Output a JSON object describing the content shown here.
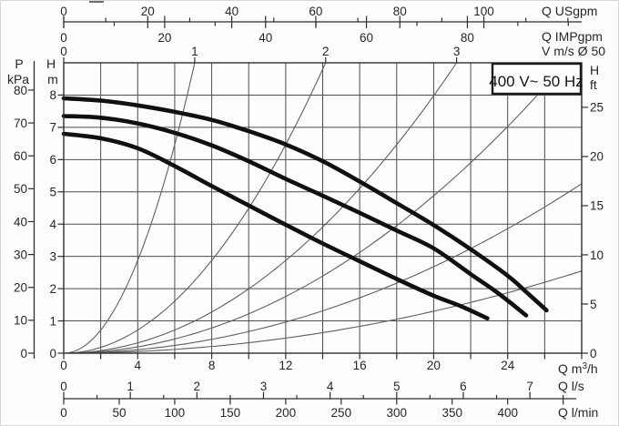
{
  "voltage_badge": "400 V~ 50 Hz",
  "chart_data": {
    "type": "line",
    "title": "",
    "description": "Pump performance curves: head H versus flow Q, three pump curves with pipe-velocity guide parabolas",
    "q_range_m3h": [
      0,
      28
    ],
    "h_range_m": [
      0,
      9
    ],
    "grid": {
      "x_step_m3h": 2,
      "y_step_m": 1,
      "shown": true
    },
    "pump_curves": [
      {
        "name": "top",
        "points_q_h": [
          [
            0,
            7.9
          ],
          [
            2,
            7.83
          ],
          [
            4,
            7.68
          ],
          [
            6,
            7.48
          ],
          [
            8,
            7.23
          ],
          [
            10,
            6.88
          ],
          [
            12,
            6.47
          ],
          [
            14,
            5.95
          ],
          [
            16,
            5.32
          ],
          [
            18,
            4.65
          ],
          [
            20,
            3.97
          ],
          [
            22,
            3.22
          ],
          [
            24,
            2.4
          ],
          [
            25,
            1.9
          ],
          [
            26.1,
            1.33
          ]
        ]
      },
      {
        "name": "middle",
        "points_q_h": [
          [
            0,
            7.35
          ],
          [
            2,
            7.3
          ],
          [
            4,
            7.12
          ],
          [
            6,
            6.83
          ],
          [
            8,
            6.44
          ],
          [
            10,
            5.95
          ],
          [
            12,
            5.4
          ],
          [
            14,
            4.88
          ],
          [
            16,
            4.35
          ],
          [
            18,
            3.8
          ],
          [
            20,
            3.25
          ],
          [
            22,
            2.45
          ],
          [
            23.5,
            1.85
          ],
          [
            25,
            1.17
          ]
        ]
      },
      {
        "name": "bottom",
        "points_q_h": [
          [
            0,
            6.8
          ],
          [
            2,
            6.66
          ],
          [
            4,
            6.35
          ],
          [
            6,
            5.8
          ],
          [
            8,
            5.18
          ],
          [
            10,
            4.58
          ],
          [
            12,
            3.98
          ],
          [
            14,
            3.4
          ],
          [
            16,
            2.85
          ],
          [
            18,
            2.3
          ],
          [
            20,
            1.78
          ],
          [
            21.5,
            1.45
          ],
          [
            22.9,
            1.08
          ]
        ]
      }
    ],
    "velocity_guide_curves": [
      {
        "k_h_per_q2": 0.1796
      },
      {
        "k_h_per_q2": 0.0449
      },
      {
        "k_h_per_q2": 0.01995
      },
      {
        "k_h_per_q2": 0.0122
      },
      {
        "k_h_per_q2": 0.0067
      },
      {
        "k_h_per_q2": 0.00325
      }
    ],
    "axes": {
      "q_usgpm": {
        "label": "Q USgpm",
        "m3h_per_unit": 0.22712,
        "major_labels": [
          0,
          20,
          40,
          60,
          80,
          100
        ],
        "minor_step": 10,
        "minor_max": 120
      },
      "q_impgpm": {
        "label": "Q IMPgpm",
        "m3h_per_unit": 0.27276,
        "major_labels": [
          0,
          20,
          40,
          60,
          80
        ],
        "minor_step": 10,
        "minor_max": 100
      },
      "v_ms": {
        "label": "V m/s Ø 50",
        "ticks": [
          0,
          1,
          2,
          3
        ],
        "m3h_per_unit": 7.08
      },
      "p_kpa": {
        "label_top": "P",
        "label_bottom": "kPa",
        "ticks": [
          0,
          10,
          20,
          30,
          40,
          50,
          60,
          70,
          80
        ],
        "kpa_per_m": 9.81
      },
      "h_m": {
        "label_top": "H",
        "label_bottom": "m",
        "ticks": [
          0,
          1,
          2,
          3,
          4,
          5,
          6,
          7,
          8
        ]
      },
      "h_ft": {
        "label_top": "H",
        "label_bottom": "ft",
        "ticks": [
          0,
          5,
          10,
          15,
          20,
          25
        ],
        "m_per_unit": 0.3048
      },
      "q_m3h": {
        "label_pre": "Q m",
        "label_sup": "3",
        "label_post": "/h",
        "major_labels": [
          0,
          4,
          8,
          12,
          16,
          20,
          24
        ],
        "minor_step": 2
      },
      "q_ls": {
        "label": "Q l/s",
        "major_labels": [
          0,
          1,
          2,
          3,
          4,
          5,
          6,
          7
        ],
        "m3h_per_unit": 3.6,
        "minor_step": 0.5
      },
      "q_lmin": {
        "label": "Q l/min",
        "major_labels": [
          0,
          50,
          100,
          150,
          200,
          250,
          300,
          350,
          400
        ],
        "m3h_per_unit": 0.06,
        "tick_step": 50,
        "tick_max": 450
      }
    },
    "annotations": [
      "400 V~ 50 Hz"
    ],
    "colors": {
      "pump_curve": "#101010",
      "guide_curve": "#5f5f5f",
      "grid": "#4d4d4d",
      "border": "#2e2e2e",
      "text": "#262626",
      "badge_border": "#1c1c1c",
      "background": "#fdfdfd"
    }
  }
}
